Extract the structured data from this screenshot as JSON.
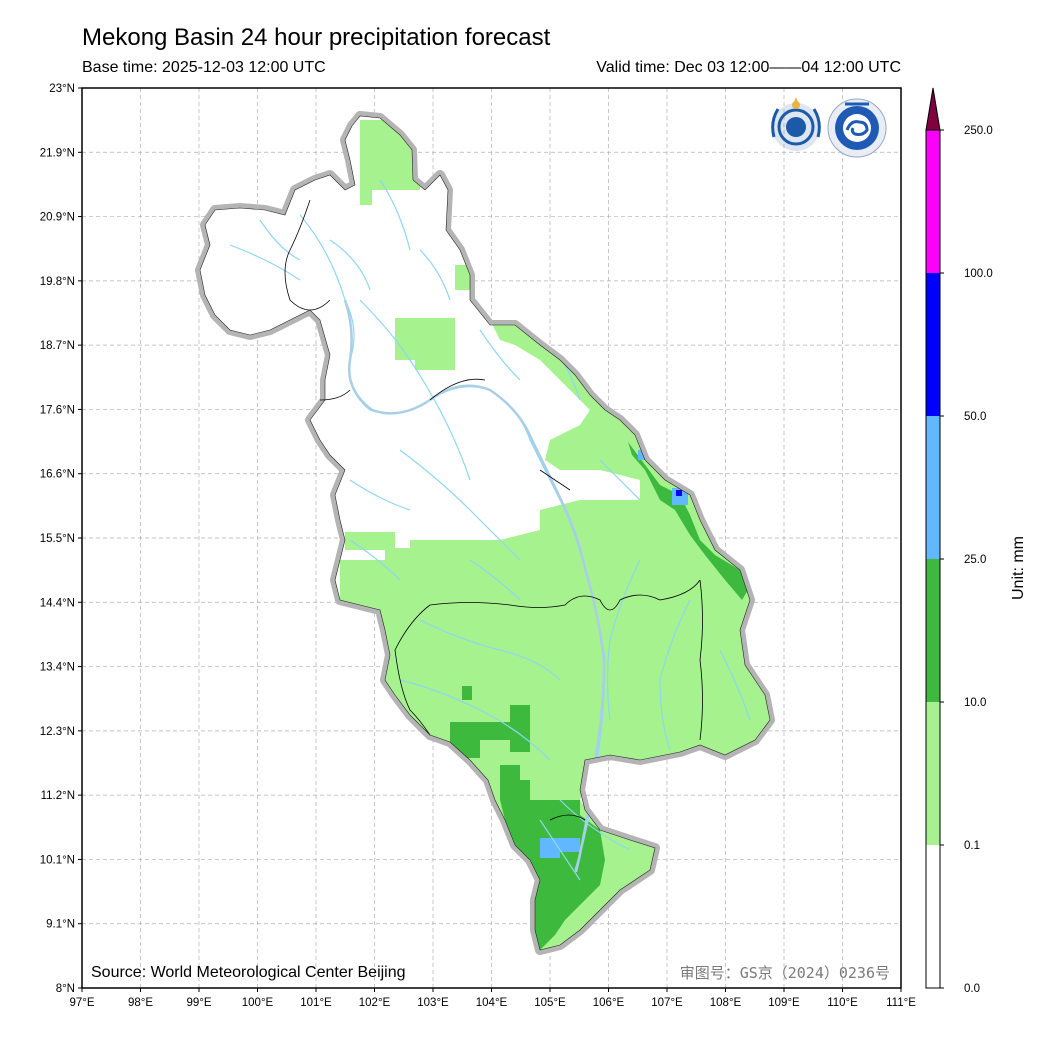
{
  "map": {
    "title": "Mekong Basin 24 hour precipitation forecast",
    "base_time": "Base time: 2025-12-03 12:00 UTC",
    "valid_time": "Valid time: Dec 03 12:00——04 12:00 UTC",
    "source": "Source: World Meteorological Center Beijing",
    "approval": "审图号：GS京（2024）0236号",
    "lat_ticks": [
      "23°N",
      "21.9°N",
      "20.9°N",
      "19.8°N",
      "18.7°N",
      "17.6°N",
      "16.6°N",
      "15.5°N",
      "14.4°N",
      "13.4°N",
      "12.3°N",
      "11.2°N",
      "10.1°N",
      "9.1°N",
      "8°N"
    ],
    "lon_ticks": [
      "97°E",
      "98°E",
      "99°E",
      "100°E",
      "101°E",
      "102°E",
      "103°E",
      "104°E",
      "105°E",
      "106°E",
      "107°E",
      "108°E",
      "109°E",
      "110°E",
      "111°E"
    ],
    "lat_range": [
      8,
      23
    ],
    "lon_range": [
      97,
      111
    ],
    "logos": [
      "wmo-emblem",
      "cma-emblem"
    ]
  },
  "legend": {
    "unit": "Unit: mm",
    "bins": [
      {
        "label": "0.0",
        "color": "#ffffff"
      },
      {
        "label": "0.1",
        "color": "#a6f28f"
      },
      {
        "label": "10.0",
        "color": "#3dba3d"
      },
      {
        "label": "25.0",
        "color": "#61b8ff"
      },
      {
        "label": "50.0",
        "color": "#0000ff"
      },
      {
        "label": "100.0",
        "color": "#fa00fa"
      },
      {
        "label": "250.0",
        "color": "#800040"
      }
    ]
  }
}
